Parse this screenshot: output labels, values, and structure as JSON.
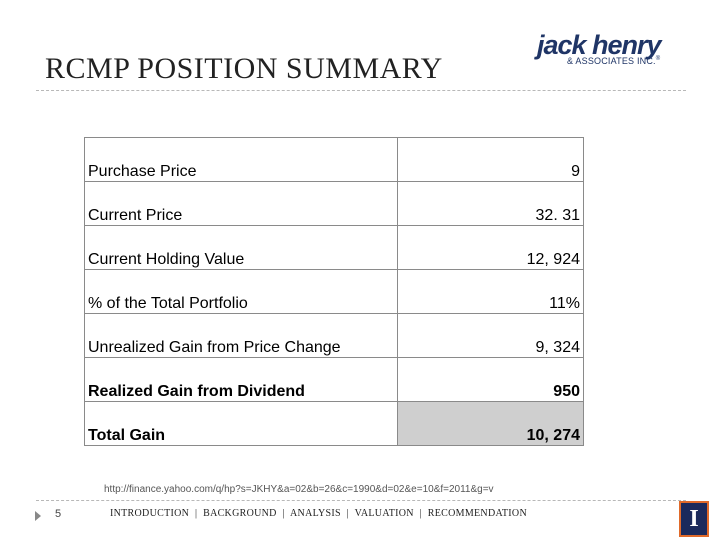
{
  "slide": {
    "title": "RCMP POSITION SUMMARY",
    "page_number": "5"
  },
  "logo": {
    "name": "jack henry",
    "subtitle": "& ASSOCIATES INC.",
    "registered_mark": "®"
  },
  "table": {
    "rows": [
      {
        "label": "Purchase Price",
        "value": "9",
        "bold": false,
        "shaded": false
      },
      {
        "label": "Current Price",
        "value": "32. 31",
        "bold": false,
        "shaded": false
      },
      {
        "label": "Current Holding Value",
        "value": "12, 924",
        "bold": false,
        "shaded": false
      },
      {
        "label": "% of the Total Portfolio",
        "value": "11%",
        "bold": false,
        "shaded": false
      },
      {
        "label": "Unrealized Gain from Price Change",
        "value": "9, 324",
        "bold": false,
        "shaded": false
      },
      {
        "label": "Realized Gain from Dividend",
        "value": "950",
        "bold": true,
        "shaded": false
      },
      {
        "label": "Total Gain",
        "value": "10, 274",
        "bold": true,
        "shaded": true
      }
    ]
  },
  "source": {
    "url": "http://finance.yahoo.com/q/hp?s=JKHY&a=02&b=26&c=1990&d=02&e=10&f=2011&g=v"
  },
  "nav": {
    "items": [
      "INTRODUCTION",
      "BACKGROUND",
      "ANALYSIS",
      "VALUATION",
      "RECOMMENDATION"
    ],
    "separator": "|"
  },
  "university_logo": {
    "letter": "I"
  },
  "colors": {
    "logo_blue": "#1f3566",
    "total_shade": "#cfcfcf",
    "uofi_blue": "#1b2a5c",
    "uofi_orange": "#e06a2a"
  }
}
